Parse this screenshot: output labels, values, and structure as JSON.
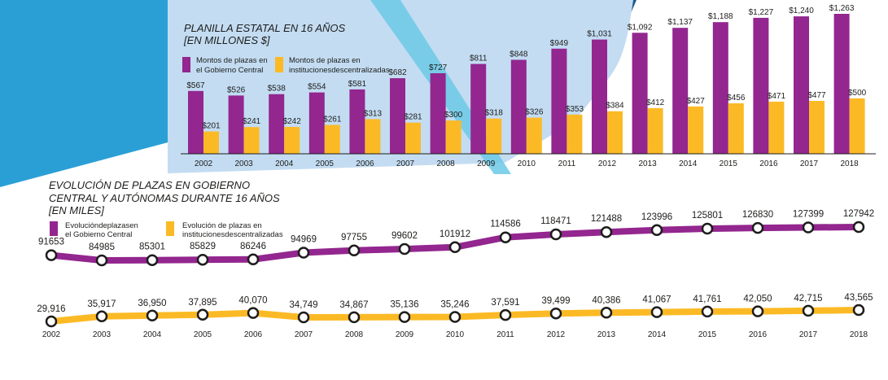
{
  "colors": {
    "purple": "#93268f",
    "yellow": "#fbba25",
    "blue_dark": "#2a9fd6",
    "blue_light": "#c3dcf2",
    "cyan": "#6cc9e6",
    "navy": "#1e5d8c"
  },
  "chart_data": [
    {
      "type": "bar",
      "title": "PLANILLA ESTATAL EN 16 AÑOS",
      "subtitle": "[EN MILLONES $]",
      "categories": [
        "2002",
        "2003",
        "2004",
        "2005",
        "2006",
        "2007",
        "2008",
        "2009",
        "2010",
        "2011",
        "2012",
        "2013",
        "2014",
        "2015",
        "2016",
        "2017",
        "2018"
      ],
      "series": [
        {
          "name": "Montos de plazas en el Gobierno Central",
          "legend_lines": [
            "Montos de plazas en",
            "el Gobierno Central"
          ],
          "color": "#93268f",
          "values": [
            567,
            526,
            538,
            554,
            581,
            682,
            727,
            811,
            848,
            949,
            1031,
            1092,
            1137,
            1188,
            1227,
            1240,
            1263
          ],
          "labels": [
            "$567",
            "$526",
            "$538",
            "$554",
            "$581",
            "$682",
            "$727",
            "$811",
            "$848",
            "$949",
            "$1,031",
            "$1,092",
            "$1,137",
            "$1,188",
            "$1,227",
            "$1,240",
            "$1,263"
          ]
        },
        {
          "name": "Montos de plazas en institucionesdescentralizadas",
          "legend_lines": [
            "Montos de plazas en",
            "institucionesdescentralizadas"
          ],
          "color": "#fbba25",
          "values": [
            201,
            241,
            242,
            261,
            313,
            281,
            300,
            318,
            326,
            353,
            384,
            412,
            427,
            456,
            471,
            477,
            500
          ],
          "labels": [
            "$201",
            "$241",
            "$242",
            "$261",
            "$313",
            "$281",
            "$300",
            "$318",
            "$326",
            "$353",
            "$384",
            "$412",
            "$427",
            "$456",
            "$471",
            "$477",
            "$500"
          ]
        }
      ],
      "ylim": [
        0,
        1300
      ]
    },
    {
      "type": "line",
      "title_lines": [
        "EVOLUCIÓN DE PLAZAS EN GOBIERNO",
        "CENTRAL Y AUTÓNOMAS DURANTE 16 AÑOS",
        "[EN MILES]"
      ],
      "x": [
        "2002",
        "2003",
        "2004",
        "2005",
        "2006",
        "2007",
        "2008",
        "2009",
        "2010",
        "2011",
        "2012",
        "2013",
        "2014",
        "2015",
        "2016",
        "2017",
        "2018"
      ],
      "series": [
        {
          "name": "Evolucióndeplazasen el Gobierno Central",
          "legend_lines": [
            "Evolucióndeplazasen",
            "el Gobierno Central"
          ],
          "color": "#93268f",
          "values": [
            91653,
            84985,
            85301,
            85829,
            86246,
            94969,
            97755,
            99602,
            101912,
            114586,
            118471,
            121488,
            123996,
            125801,
            126830,
            127399,
            127942
          ],
          "labels": [
            "91653",
            "84985",
            "85301",
            "85829",
            "86246",
            "94969",
            "97755",
            "99602",
            "101912",
            "114586",
            "118471",
            "121488",
            "123996",
            "125801",
            "126830",
            "127399",
            "127942"
          ]
        },
        {
          "name": "Evolución de plazas en institucionesdescentralizadas",
          "legend_lines": [
            "Evolución de plazas en",
            "institucionesdescentralizadas"
          ],
          "color": "#fbba25",
          "values": [
            29916,
            35917,
            36950,
            37895,
            40070,
            34749,
            34867,
            35136,
            35246,
            37591,
            39499,
            40386,
            41067,
            41761,
            42050,
            42715,
            43565
          ],
          "labels": [
            "29,916",
            "35,917",
            "36,950",
            "37,895",
            "40,070",
            "34,749",
            "34,867",
            "35,136",
            "35,246",
            "37,591",
            "39,499",
            "40,386",
            "41,067",
            "41,761",
            "42,050",
            "42,715",
            "43,565"
          ]
        }
      ]
    }
  ]
}
